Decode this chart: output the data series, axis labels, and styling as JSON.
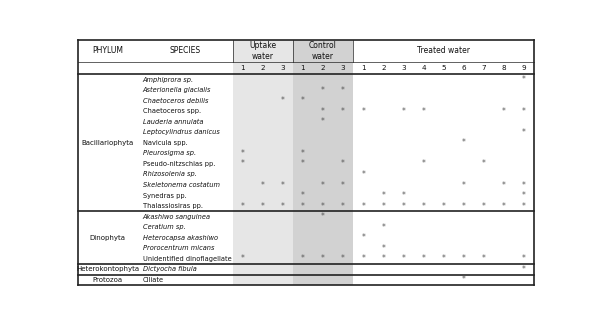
{
  "col_labels": [
    "1",
    "2",
    "3",
    "1",
    "2",
    "3",
    "1",
    "2",
    "3",
    "4",
    "5",
    "6",
    "7",
    "8",
    "9"
  ],
  "rows": [
    {
      "phylum": "Bacillariophyta",
      "species": "Amphiprora sp.",
      "italic": true,
      "marks": [
        0,
        0,
        0,
        0,
        0,
        0,
        0,
        0,
        0,
        0,
        0,
        0,
        0,
        0,
        1
      ]
    },
    {
      "phylum": "",
      "species": "Asterionella glacialis",
      "italic": true,
      "marks": [
        0,
        0,
        0,
        0,
        1,
        1,
        0,
        0,
        0,
        0,
        0,
        0,
        0,
        0,
        0
      ]
    },
    {
      "phylum": "",
      "species": "Chaetoceros debilis",
      "italic": true,
      "marks": [
        0,
        0,
        1,
        1,
        0,
        0,
        0,
        0,
        0,
        0,
        0,
        0,
        0,
        0,
        0
      ]
    },
    {
      "phylum": "",
      "species": "Chaetoceros spp.",
      "italic": false,
      "marks": [
        0,
        0,
        0,
        0,
        1,
        1,
        1,
        0,
        1,
        1,
        0,
        0,
        0,
        1,
        1
      ]
    },
    {
      "phylum": "",
      "species": "Lauderia annulata",
      "italic": true,
      "marks": [
        0,
        0,
        0,
        0,
        1,
        0,
        0,
        0,
        0,
        0,
        0,
        0,
        0,
        0,
        0
      ]
    },
    {
      "phylum": "",
      "species": "Leptocylindrus danicus",
      "italic": true,
      "marks": [
        0,
        0,
        0,
        0,
        0,
        0,
        0,
        0,
        0,
        0,
        0,
        0,
        0,
        0,
        1
      ]
    },
    {
      "phylum": "",
      "species": "Navicula spp.",
      "italic": false,
      "marks": [
        0,
        0,
        0,
        0,
        0,
        0,
        0,
        0,
        0,
        0,
        0,
        1,
        0,
        0,
        0
      ]
    },
    {
      "phylum": "",
      "species": "Pleurosigma sp.",
      "italic": true,
      "marks": [
        1,
        0,
        0,
        1,
        0,
        0,
        0,
        0,
        0,
        0,
        0,
        0,
        0,
        0,
        0
      ]
    },
    {
      "phylum": "",
      "species": "Pseudo-nitzschias pp.",
      "italic": false,
      "marks": [
        1,
        0,
        0,
        1,
        0,
        1,
        0,
        0,
        0,
        1,
        0,
        0,
        1,
        0,
        0
      ]
    },
    {
      "phylum": "",
      "species": "Rhizosolenia sp.",
      "italic": true,
      "marks": [
        0,
        0,
        0,
        0,
        0,
        0,
        1,
        0,
        0,
        0,
        0,
        0,
        0,
        0,
        0
      ]
    },
    {
      "phylum": "",
      "species": "Skeletonema costatum",
      "italic": true,
      "marks": [
        0,
        1,
        1,
        0,
        1,
        1,
        0,
        0,
        0,
        0,
        0,
        1,
        0,
        1,
        1
      ]
    },
    {
      "phylum": "",
      "species": "Synedras pp.",
      "italic": false,
      "marks": [
        0,
        0,
        0,
        1,
        0,
        0,
        0,
        1,
        1,
        0,
        0,
        0,
        0,
        0,
        1
      ]
    },
    {
      "phylum": "",
      "species": "Thalassiosiras pp.",
      "italic": false,
      "marks": [
        1,
        1,
        1,
        1,
        1,
        1,
        1,
        1,
        1,
        1,
        1,
        1,
        1,
        1,
        1
      ]
    },
    {
      "phylum": "Dinophyta",
      "species": "Akashiwo sanguinea",
      "italic": true,
      "marks": [
        0,
        0,
        0,
        0,
        1,
        0,
        0,
        0,
        0,
        0,
        0,
        0,
        0,
        0,
        0
      ]
    },
    {
      "phylum": "",
      "species": "Ceratium sp.",
      "italic": true,
      "marks": [
        0,
        0,
        0,
        0,
        0,
        0,
        0,
        1,
        0,
        0,
        0,
        0,
        0,
        0,
        0
      ]
    },
    {
      "phylum": "",
      "species": "Heterocapsa akashiwo",
      "italic": true,
      "marks": [
        0,
        0,
        0,
        0,
        0,
        0,
        1,
        0,
        0,
        0,
        0,
        0,
        0,
        0,
        0
      ]
    },
    {
      "phylum": "",
      "species": "Prorocentrum micans",
      "italic": true,
      "marks": [
        0,
        0,
        0,
        0,
        0,
        0,
        0,
        1,
        0,
        0,
        0,
        0,
        0,
        0,
        0
      ]
    },
    {
      "phylum": "",
      "species": "Unidentified dinoflagellate",
      "italic": false,
      "marks": [
        1,
        0,
        0,
        1,
        1,
        1,
        1,
        1,
        1,
        1,
        1,
        1,
        1,
        0,
        1
      ]
    },
    {
      "phylum": "Heterokontophyta",
      "species": "Dictyocha fibula",
      "italic": true,
      "marks": [
        0,
        0,
        0,
        0,
        0,
        0,
        0,
        0,
        0,
        0,
        0,
        0,
        0,
        0,
        1
      ]
    },
    {
      "phylum": "Protozoa",
      "species": "Ciliate",
      "italic": false,
      "marks": [
        0,
        0,
        0,
        0,
        0,
        0,
        0,
        0,
        0,
        0,
        0,
        1,
        0,
        0,
        0
      ]
    }
  ],
  "phylum_groups": [
    {
      "name": "Bacillariophyta",
      "start": 0,
      "end": 12
    },
    {
      "name": "Dinophyta",
      "start": 13,
      "end": 17
    },
    {
      "name": "Heterokontophyta",
      "start": 18,
      "end": 18
    },
    {
      "name": "Protozoa",
      "start": 19,
      "end": 19
    }
  ],
  "uptake_bg": "#e6e6e6",
  "control_bg": "#d2d2d2",
  "mark_char": "*",
  "mark_color": "#555555",
  "text_color": "#111111",
  "header_phylum": "PHYLUM",
  "header_species": "SPECIES",
  "header_uptake": "Uptake\nwater",
  "header_control": "Control\nwater",
  "header_treated": "Treated water"
}
